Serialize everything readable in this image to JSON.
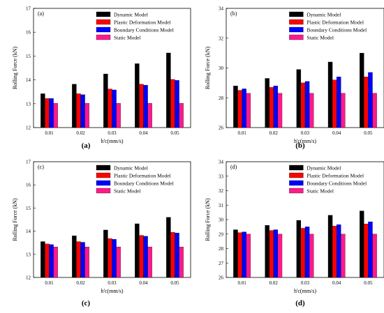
{
  "figure": {
    "series_colors": [
      "#000000",
      "#ff0000",
      "#0000ff",
      "#ff1a8c"
    ]
  },
  "chart_data": [
    {
      "type": "bar",
      "panel_label": "(a)",
      "caption": "(a)",
      "categories": [
        "0.01",
        "0.02",
        "0.03",
        "0.04",
        "0.05"
      ],
      "ylabel": "Rolling Force (kN)",
      "xlabel": "h'c(mm/s)",
      "ylim": [
        12,
        17
      ],
      "yticks": [
        "12",
        "13",
        "14",
        "15",
        "16",
        "17"
      ],
      "legend_position": "top-right",
      "series": [
        {
          "name": "Dynamic Model",
          "values": [
            13.42,
            13.82,
            14.25,
            14.68,
            15.13
          ]
        },
        {
          "name": "Plastic Deformation Model",
          "values": [
            13.22,
            13.42,
            13.62,
            13.82,
            14.02
          ]
        },
        {
          "name": "Boundary Conditions Model",
          "values": [
            13.22,
            13.38,
            13.58,
            13.78,
            13.98
          ]
        },
        {
          "name": "Static Model",
          "values": [
            13.02,
            13.02,
            13.02,
            13.02,
            13.02
          ]
        }
      ]
    },
    {
      "type": "bar",
      "panel_label": "(b)",
      "caption": "(b)",
      "categories": [
        "0.01",
        "0.02",
        "0.03",
        "0.04",
        "0.05"
      ],
      "ylabel": "Rolling Force (kN)",
      "xlabel": "h'c(mm/s)",
      "ylim": [
        26,
        34
      ],
      "yticks": [
        "26",
        "28",
        "30",
        "32",
        "34"
      ],
      "legend_position": "top-right",
      "series": [
        {
          "name": "Dynamic Model",
          "values": [
            28.8,
            29.3,
            29.9,
            30.4,
            31.0
          ]
        },
        {
          "name": "Plastic Deformation Model",
          "values": [
            28.5,
            28.7,
            29.0,
            29.2,
            29.4
          ]
        },
        {
          "name": "Boundary Conditions Model",
          "values": [
            28.6,
            28.8,
            29.1,
            29.4,
            29.7
          ]
        },
        {
          "name": "Static Model",
          "values": [
            28.3,
            28.3,
            28.3,
            28.3,
            28.3
          ]
        }
      ]
    },
    {
      "type": "bar",
      "panel_label": "(c)",
      "caption": "(c)",
      "categories": [
        "0.01",
        "0.02",
        "0.03",
        "0.04",
        "0.05"
      ],
      "ylabel": "Rolling Force (kN)",
      "xlabel": "h'c(mm/s)",
      "ylim": [
        12,
        17
      ],
      "yticks": [
        "12",
        "13",
        "14",
        "15",
        "16",
        "17"
      ],
      "legend_position": "top-right",
      "series": [
        {
          "name": "Dynamic Model",
          "values": [
            13.55,
            13.8,
            14.05,
            14.32,
            14.6
          ]
        },
        {
          "name": "Plastic Deformation Model",
          "values": [
            13.45,
            13.55,
            13.68,
            13.82,
            13.95
          ]
        },
        {
          "name": "Boundary Conditions Model",
          "values": [
            13.42,
            13.52,
            13.65,
            13.78,
            13.92
          ]
        },
        {
          "name": "Static Model",
          "values": [
            13.32,
            13.32,
            13.32,
            13.32,
            13.32
          ]
        }
      ]
    },
    {
      "type": "bar",
      "panel_label": "(d)",
      "caption": "(d)",
      "categories": [
        "0.01",
        "0.02",
        "0.03",
        "0.04",
        "0.05"
      ],
      "ylabel": "Rolling Force (kN)",
      "xlabel": "h'c(mm/s)",
      "ylim": [
        26,
        34
      ],
      "yticks": [
        "26",
        "27",
        "28",
        "29",
        "30",
        "31",
        "32",
        "33",
        "34"
      ],
      "legend_position": "top-right",
      "series": [
        {
          "name": "Dynamic Model",
          "values": [
            29.3,
            29.6,
            29.95,
            30.3,
            30.6
          ]
        },
        {
          "name": "Plastic Deformation Model",
          "values": [
            29.1,
            29.25,
            29.4,
            29.55,
            29.7
          ]
        },
        {
          "name": "Boundary Conditions Model",
          "values": [
            29.15,
            29.3,
            29.5,
            29.65,
            29.85
          ]
        },
        {
          "name": "Static Model",
          "values": [
            29.0,
            29.0,
            29.0,
            29.0,
            29.0
          ]
        }
      ]
    }
  ]
}
